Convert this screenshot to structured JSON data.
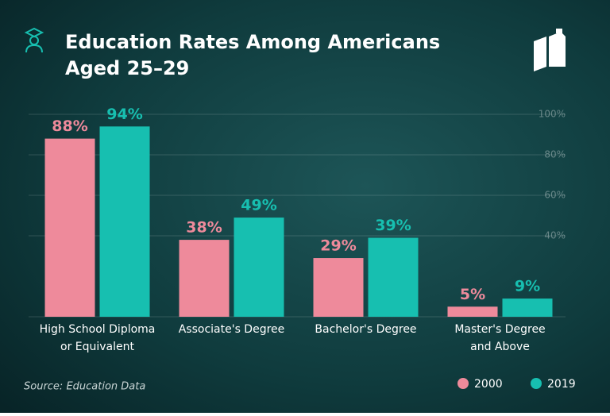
{
  "chart_data": {
    "type": "bar",
    "title": "Education Rates Among Americans\nAged 25–29",
    "categories": [
      "High School Diploma\nor Equivalent",
      "Associate's Degree",
      "Bachelor's Degree",
      "Master's Degree\nand Above"
    ],
    "series": [
      {
        "name": "2000",
        "color": "#ee8a9b",
        "values": [
          88,
          38,
          29,
          5
        ],
        "value_labels": [
          "88%",
          "38%",
          "29%",
          "5%"
        ]
      },
      {
        "name": "2019",
        "color": "#17bfb0",
        "values": [
          94,
          49,
          39,
          9
        ],
        "value_labels": [
          "94%",
          "49%",
          "39%",
          "9%"
        ]
      }
    ],
    "ylim": [
      0,
      100
    ],
    "yticks": [
      {
        "value": 40,
        "label": "40%"
      },
      {
        "value": 60,
        "label": "60%"
      },
      {
        "value": 80,
        "label": "80%"
      },
      {
        "value": 100,
        "label": "100%"
      }
    ],
    "grid": true,
    "source": "Source: Education Data"
  }
}
